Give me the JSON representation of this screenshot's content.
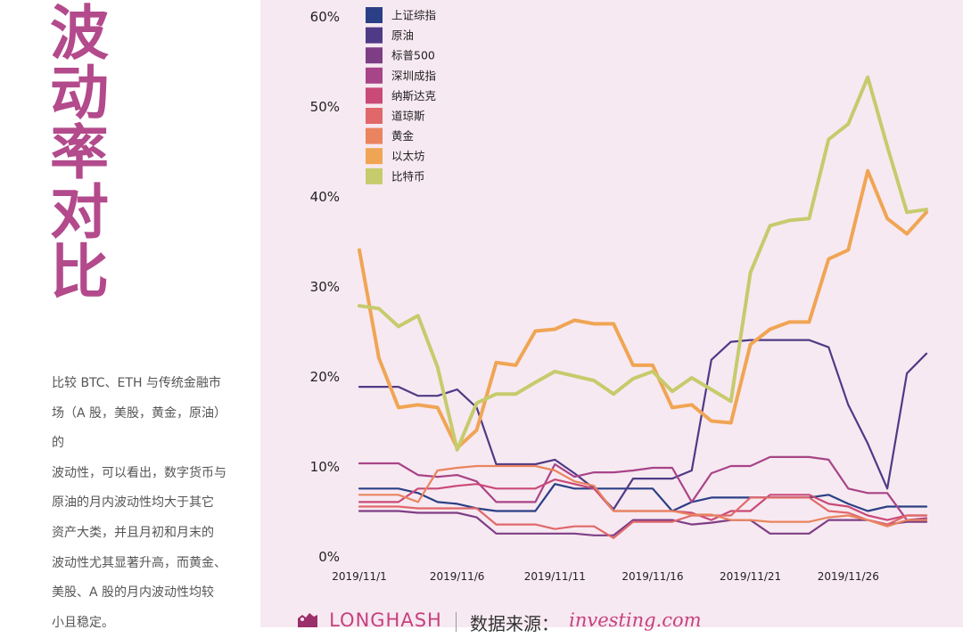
{
  "title_chars": [
    "波",
    "动",
    "率",
    "对",
    "比"
  ],
  "description": [
    "比较 BTC、ETH 与传统金融市",
    "场（A 股，美股，黄金，原油）的",
    "波动性，可以看出，数字货币与",
    "原油的月内波动性均大于其它",
    "资产大类，并且月初和月末的",
    "波动性尤其显著升高，而黄金、",
    "美股、A 股的月内波动性均较",
    "小且稳定。"
  ],
  "footer": {
    "brand": "LONGHASH",
    "source_label": "数据来源：",
    "source_name": "investing.com"
  },
  "colors": {
    "title": "#b34a8c",
    "panel_bg": "#f7e9f1",
    "brand": "#c6417e"
  },
  "chart_data": {
    "type": "line",
    "x": [
      "2019/11/1",
      "2019/11/2",
      "2019/11/3",
      "2019/11/4",
      "2019/11/5",
      "2019/11/6",
      "2019/11/7",
      "2019/11/8",
      "2019/11/9",
      "2019/11/10",
      "2019/11/11",
      "2019/11/12",
      "2019/11/13",
      "2019/11/14",
      "2019/11/15",
      "2019/11/16",
      "2019/11/17",
      "2019/11/18",
      "2019/11/19",
      "2019/11/20",
      "2019/11/21",
      "2019/11/22",
      "2019/11/23",
      "2019/11/24",
      "2019/11/25",
      "2019/11/26",
      "2019/11/27",
      "2019/11/28",
      "2019/11/29",
      "2019/11/30"
    ],
    "x_tick_labels": [
      "2019/11/1",
      "2019/11/6",
      "2019/11/11",
      "2019/11/16",
      "2019/11/21",
      "2019/11/26"
    ],
    "x_tick_index": [
      0,
      5,
      10,
      15,
      20,
      25
    ],
    "ylim": [
      0,
      60
    ],
    "y_ticks": [
      0,
      10,
      20,
      30,
      40,
      50,
      60
    ],
    "y_tick_labels": [
      "0%",
      "10%",
      "20%",
      "30%",
      "40%",
      "50%",
      "60%"
    ],
    "legend_position": "top-left",
    "series": [
      {
        "name": "上证综指",
        "color": "#2a3f85",
        "values": [
          7.5,
          7.5,
          7.5,
          7,
          6,
          5.8,
          5.3,
          5,
          5,
          5,
          8,
          7.5,
          7.5,
          7.5,
          7.5,
          7.5,
          5,
          6,
          6.5,
          6.5,
          6.5,
          6.5,
          6.5,
          6.5,
          6.8,
          5.8,
          5,
          5.5,
          5.5,
          5.5
        ]
      },
      {
        "name": "原油",
        "color": "#4f3a86",
        "values": [
          18.8,
          18.8,
          18.8,
          17.8,
          17.8,
          18.5,
          16.5,
          10.2,
          10.2,
          10.2,
          10.7,
          9.2,
          7.5,
          5.2,
          8.6,
          8.6,
          8.6,
          9.5,
          21.8,
          23.8,
          24,
          24,
          24,
          24,
          23.2,
          16.8,
          12.5,
          7.5,
          20.3,
          22.5
        ]
      },
      {
        "name": "标普500",
        "color": "#7e3e86",
        "values": [
          5,
          5,
          5,
          4.8,
          4.8,
          4.8,
          4.3,
          2.5,
          2.5,
          2.5,
          2.5,
          2.5,
          2.3,
          2.3,
          4,
          4,
          4,
          3.5,
          3.7,
          4,
          4,
          2.5,
          2.5,
          2.5,
          4,
          4,
          4,
          3.5,
          3.8,
          3.8
        ]
      },
      {
        "name": "深圳成指",
        "color": "#a84488",
        "values": [
          10.3,
          10.3,
          10.3,
          9,
          8.8,
          9,
          8.3,
          6,
          6,
          6,
          10.2,
          8.8,
          9.3,
          9.3,
          9.5,
          9.8,
          9.8,
          6,
          9.2,
          10,
          10,
          11,
          11,
          11,
          10.7,
          7.5,
          7,
          7,
          4,
          4.2
        ]
      },
      {
        "name": "纳斯达克",
        "color": "#c94a77",
        "values": [
          6,
          6,
          6,
          7.5,
          7.5,
          7.8,
          8,
          7.5,
          7.5,
          7.5,
          8.5,
          8,
          7.5,
          5,
          5,
          5,
          5,
          4.8,
          4,
          5,
          5,
          6.8,
          6.8,
          6.8,
          5.8,
          5.5,
          4.5,
          4,
          4.5,
          4.5
        ]
      },
      {
        "name": "道琼斯",
        "color": "#e0686a",
        "values": [
          5.5,
          5.5,
          5.5,
          5.3,
          5.3,
          5.3,
          5.3,
          3.5,
          3.5,
          3.5,
          3,
          3.3,
          3.3,
          2,
          3.8,
          3.8,
          3.8,
          4.5,
          4.5,
          4.5,
          6.5,
          6.5,
          6.5,
          6.5,
          5,
          4.8,
          4,
          3.5,
          4.5,
          4.5
        ]
      },
      {
        "name": "黄金",
        "color": "#e9845e",
        "values": [
          6.8,
          6.8,
          6.8,
          6,
          9.5,
          9.8,
          10,
          10,
          10,
          10,
          9.5,
          8.3,
          7.8,
          5,
          5,
          5,
          5,
          4.6,
          4.6,
          4,
          4,
          3.8,
          3.8,
          3.8,
          4.3,
          4.5,
          4,
          3.3,
          4,
          4
        ]
      },
      {
        "name": "以太坊",
        "color": "#f0a554",
        "values": [
          34,
          22,
          16.5,
          16.8,
          16.5,
          12,
          14,
          21.5,
          21.2,
          25,
          25.2,
          26.2,
          25.8,
          25.8,
          21.2,
          21.2,
          16.5,
          16.8,
          15,
          14.8,
          23.5,
          25.2,
          26,
          26,
          33,
          34,
          42.8,
          37.5,
          35.8,
          38.2
        ]
      },
      {
        "name": "比特币",
        "color": "#c6cb6c",
        "values": [
          27.8,
          27.5,
          25.5,
          26.7,
          21,
          11.8,
          17,
          18,
          18,
          19.3,
          20.5,
          20,
          19.5,
          18,
          19.7,
          20.5,
          18.3,
          19.8,
          18.5,
          17.2,
          31.5,
          36.7,
          37.3,
          37.5,
          46.3,
          48,
          53.2,
          45.5,
          38.2,
          38.5
        ]
      }
    ]
  }
}
